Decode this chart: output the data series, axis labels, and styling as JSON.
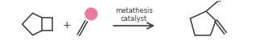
{
  "bg_color": "#ffffff",
  "line_color": "#3a3a3a",
  "line_width": 1.1,
  "pink_color": "#e87ca0",
  "text_metathesis": "metathesis\ncatalyst",
  "text_fontsize": 6.0,
  "plus_fontsize": 9,
  "figsize": [
    3.39,
    0.66
  ],
  "dpi": 100,
  "xmin": 0,
  "xmax": 339,
  "ymin": 0,
  "ymax": 66
}
